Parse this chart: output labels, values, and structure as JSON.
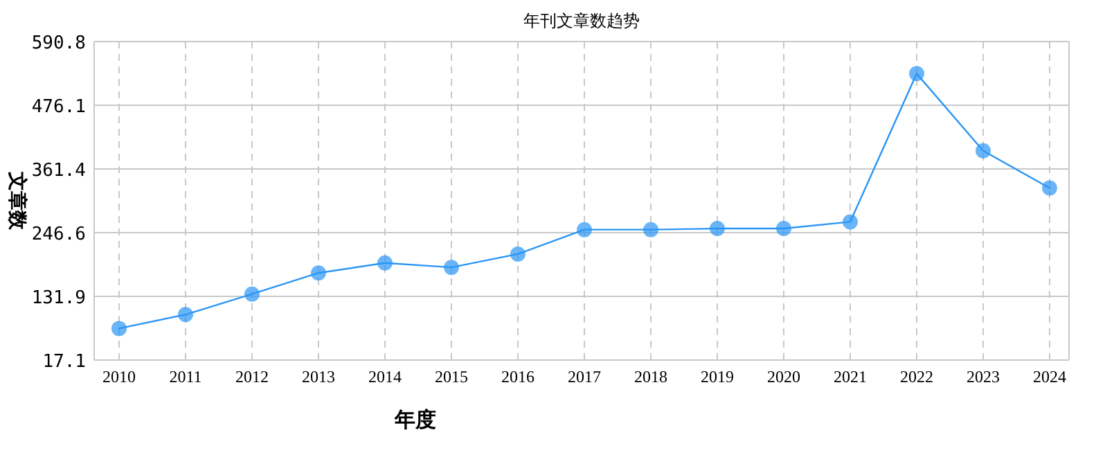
{
  "chart_data": {
    "type": "line",
    "title": "年刊文章数趋势",
    "xlabel": "年度",
    "ylabel": "文章数",
    "categories": [
      "2010",
      "2011",
      "2012",
      "2013",
      "2014",
      "2015",
      "2016",
      "2017",
      "2018",
      "2019",
      "2020",
      "2021",
      "2022",
      "2023",
      "2024"
    ],
    "series": [
      {
        "color": "#2b95f5",
        "values": [
          74,
          99,
          136,
          174,
          192,
          184,
          208,
          252,
          252,
          254,
          254,
          266,
          533,
          394,
          327
        ]
      }
    ],
    "ylim": [
      17.1,
      590.8
    ],
    "yticks": [
      17.1,
      131.9,
      246.6,
      361.4,
      476.1,
      590.8
    ],
    "grid": true,
    "marker": "circle",
    "line_style": "solid"
  }
}
